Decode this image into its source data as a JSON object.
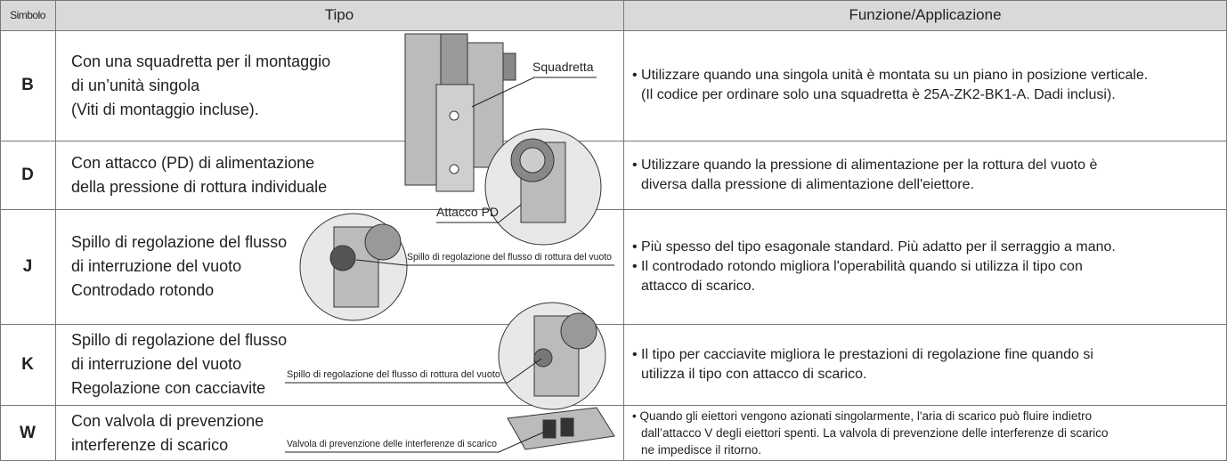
{
  "header": {
    "simbolo": "Simbolo",
    "tipo": "Tipo",
    "funzione": "Funzione/Applicazione"
  },
  "rows": [
    {
      "symbol": "B",
      "tipo": [
        "Con una squadretta per il montaggio",
        "di un’unità singola",
        "(Viti di montaggio incluse)."
      ],
      "funzione": [
        "• Utilizzare quando una singola unità è montata su un piano in posizione verticale.",
        "(Il codice per ordinare solo una squadretta è 25A-ZK2-BK1-A. Dadi inclusi)."
      ]
    },
    {
      "symbol": "D",
      "tipo": [
        "Con attacco (PD) di alimentazione",
        "della pressione di rottura individuale"
      ],
      "funzione": [
        "• Utilizzare quando la pressione di alimentazione per la rottura del vuoto è",
        "diversa dalla pressione di alimentazione dell'eiettore."
      ]
    },
    {
      "symbol": "J",
      "tipo": [
        "Spillo di regolazione del flusso",
        "di interruzione del vuoto",
        "Controdado rotondo"
      ],
      "funzione": [
        "• Più spesso del tipo esagonale standard. Più adatto per il serraggio a mano.",
        "• Il controdado rotondo migliora l'operabilità quando si utilizza il tipo con",
        "attacco di scarico."
      ]
    },
    {
      "symbol": "K",
      "tipo": [
        "Spillo di regolazione del flusso",
        "di interruzione del vuoto",
        "Regolazione con cacciavite"
      ],
      "funzione": [
        "• Il tipo per cacciavite migliora le prestazioni di regolazione fine quando si",
        "utilizza il tipo con attacco di scarico."
      ]
    },
    {
      "symbol": "W",
      "tipo": [
        "Con valvola di prevenzione",
        "interferenze di scarico"
      ],
      "funzione": [
        "• Quando gli eiettori vengono azionati singolarmente, l'aria di scarico può fluire indietro",
        "dall’attacco V degli eiettori spenti. La valvola di prevenzione delle interferenze di scarico",
        "ne impedisce il ritorno."
      ]
    }
  ],
  "callouts": [
    "Squadretta",
    "Attacco PD",
    "Spillo di regolazione del flusso di rottura del vuoto",
    "Spillo di regolazione del flusso di rottura del vuoto",
    "Valvola di prevenzione delle interferenze di scarico"
  ]
}
